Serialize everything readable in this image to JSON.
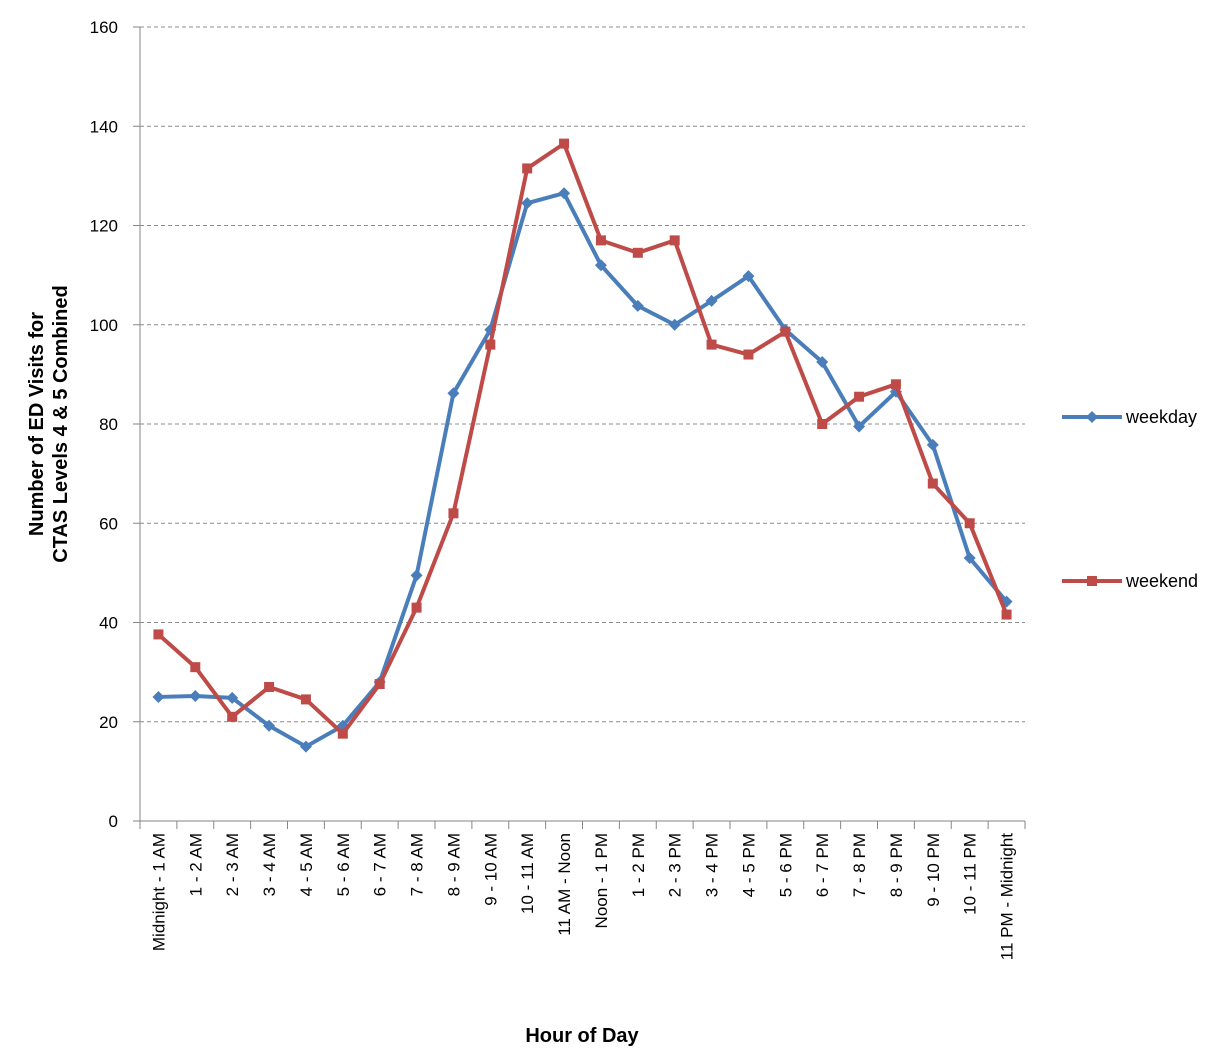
{
  "chart_data": {
    "type": "line",
    "xlabel": "Hour of Day",
    "ylabel": [
      "Number of ED Visits for",
      "CTAS Levels 4 & 5 Combined"
    ],
    "categories": [
      "Midnight - 1 AM",
      "1 - 2 AM",
      "2 - 3 AM",
      "3 - 4 AM",
      "4 - 5 AM",
      "5 - 6 AM",
      "6 - 7 AM",
      "7 - 8 AM",
      "8 - 9 AM",
      "9 - 10 AM",
      "10 - 11 AM",
      "11 AM - Noon",
      "Noon - 1 PM",
      "1 - 2 PM",
      "2 - 3 PM",
      "3 - 4 PM",
      "4 - 5 PM",
      "5 - 6 PM",
      "6 - 7 PM",
      "7 - 8 PM",
      "8 - 9 PM",
      "9 - 10 PM",
      "10 - 11 PM",
      "11 PM - Midnight"
    ],
    "series": [
      {
        "name": "weekday",
        "color": "#4a7ebb",
        "marker": "diamond",
        "values": [
          25,
          25.2,
          24.8,
          19.2,
          15,
          19.2,
          28,
          49.5,
          86.2,
          99,
          124.5,
          126.5,
          112,
          103.8,
          100,
          104.8,
          109.8,
          99,
          92.5,
          79.5,
          86.5,
          75.8,
          53,
          44.2
        ]
      },
      {
        "name": "weekend",
        "color": "#be4b48",
        "marker": "square",
        "values": [
          37.6,
          31,
          21,
          27,
          24.5,
          17.6,
          27.6,
          43,
          62,
          96,
          131.5,
          136.5,
          117,
          114.5,
          117,
          96,
          94,
          98.6,
          80,
          85.5,
          88,
          68,
          60,
          41.6
        ]
      }
    ],
    "ylim": [
      0,
      160
    ],
    "yticks": [
      0,
      20,
      40,
      60,
      80,
      100,
      120,
      140,
      160
    ],
    "grid": true,
    "legend": "right"
  }
}
